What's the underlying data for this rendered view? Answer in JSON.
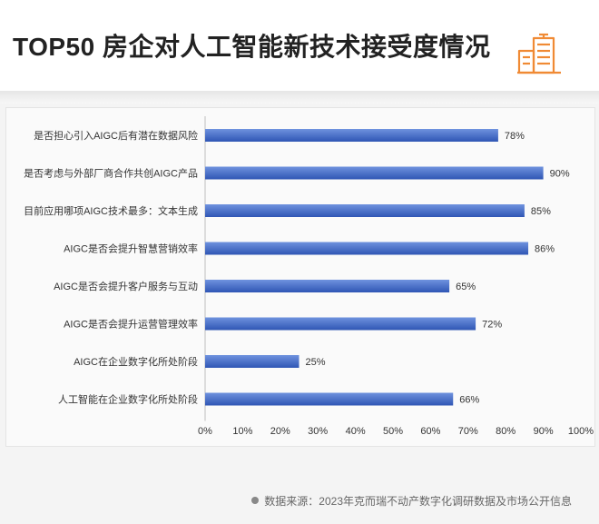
{
  "header": {
    "title": "TOP50 房企对人工智能新技术接受度情况",
    "logo_icon": "buildings-icon",
    "logo_color": "#f08a34"
  },
  "chart_data": {
    "type": "bar",
    "orientation": "horizontal",
    "title": "",
    "categories": [
      "是否担心引入AIGC后有潜在数据风险",
      "是否考虑与外部厂商合作共创AIGC产品",
      "目前应用哪项AIGC技术最多：文本生成",
      "AIGC是否会提升智慧营销效率",
      "AIGC是否会提升客户服务与互动",
      "AIGC是否会提升运营管理效率",
      "AIGC在企业数字化所处阶段",
      "人工智能在企业数字化所处阶段"
    ],
    "values": [
      78,
      90,
      85,
      86,
      65,
      72,
      25,
      66
    ],
    "value_labels": [
      "78%",
      "90%",
      "85%",
      "86%",
      "65%",
      "72%",
      "25%",
      "66%"
    ],
    "xlim": [
      0,
      100
    ],
    "x_ticks": [
      "0%",
      "10%",
      "20%",
      "30%",
      "40%",
      "50%",
      "60%",
      "70%",
      "80%",
      "90%",
      "100%"
    ],
    "grid": false,
    "bar_color_light": "#6f92de",
    "bar_color_dark": "#2f56b4"
  },
  "footer": {
    "source": "数据来源：2023年克而瑞不动产数字化调研数据及市场公开信息"
  }
}
